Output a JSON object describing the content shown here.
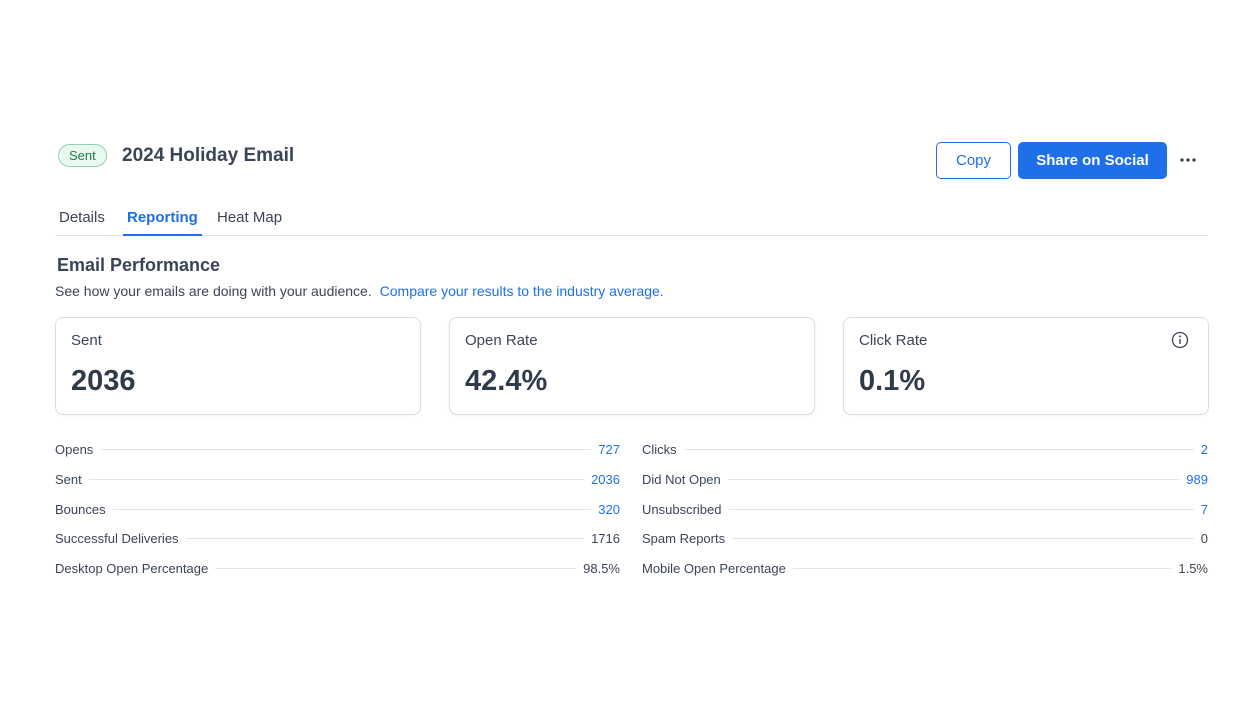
{
  "header": {
    "status": "Sent",
    "title": "2024 Holiday Email",
    "copy_label": "Copy",
    "share_label": "Share on Social"
  },
  "tabs": [
    {
      "label": "Details",
      "active": false
    },
    {
      "label": "Reporting",
      "active": true
    },
    {
      "label": "Heat Map",
      "active": false
    }
  ],
  "section": {
    "title": "Email Performance",
    "description": "See how your emails are doing with your audience.",
    "link_text": "Compare your results to the industry average."
  },
  "cards": [
    {
      "label": "Sent",
      "value": "2036"
    },
    {
      "label": "Open Rate",
      "value": "42.4%"
    },
    {
      "label": "Click Rate",
      "value": "0.1%",
      "icon": "info-icon"
    }
  ],
  "stats_left": [
    {
      "label": "Opens",
      "value": "727",
      "linked": true
    },
    {
      "label": "Sent",
      "value": "2036",
      "linked": true
    },
    {
      "label": "Bounces",
      "value": "320",
      "linked": true
    },
    {
      "label": "Successful Deliveries",
      "value": "1716",
      "linked": false
    },
    {
      "label": "Desktop Open Percentage",
      "value": "98.5%",
      "linked": false
    }
  ],
  "stats_right": [
    {
      "label": "Clicks",
      "value": "2",
      "linked": true
    },
    {
      "label": "Did Not Open",
      "value": "989",
      "linked": true
    },
    {
      "label": "Unsubscribed",
      "value": "7",
      "linked": true
    },
    {
      "label": "Spam Reports",
      "value": "0",
      "linked": false
    },
    {
      "label": "Mobile Open Percentage",
      "value": "1.5%",
      "linked": false
    }
  ],
  "colors": {
    "accent": "#1f6feb",
    "badge_bg": "#eaf8f0",
    "badge_border": "#8fd4ae",
    "text": "#3a4556"
  }
}
